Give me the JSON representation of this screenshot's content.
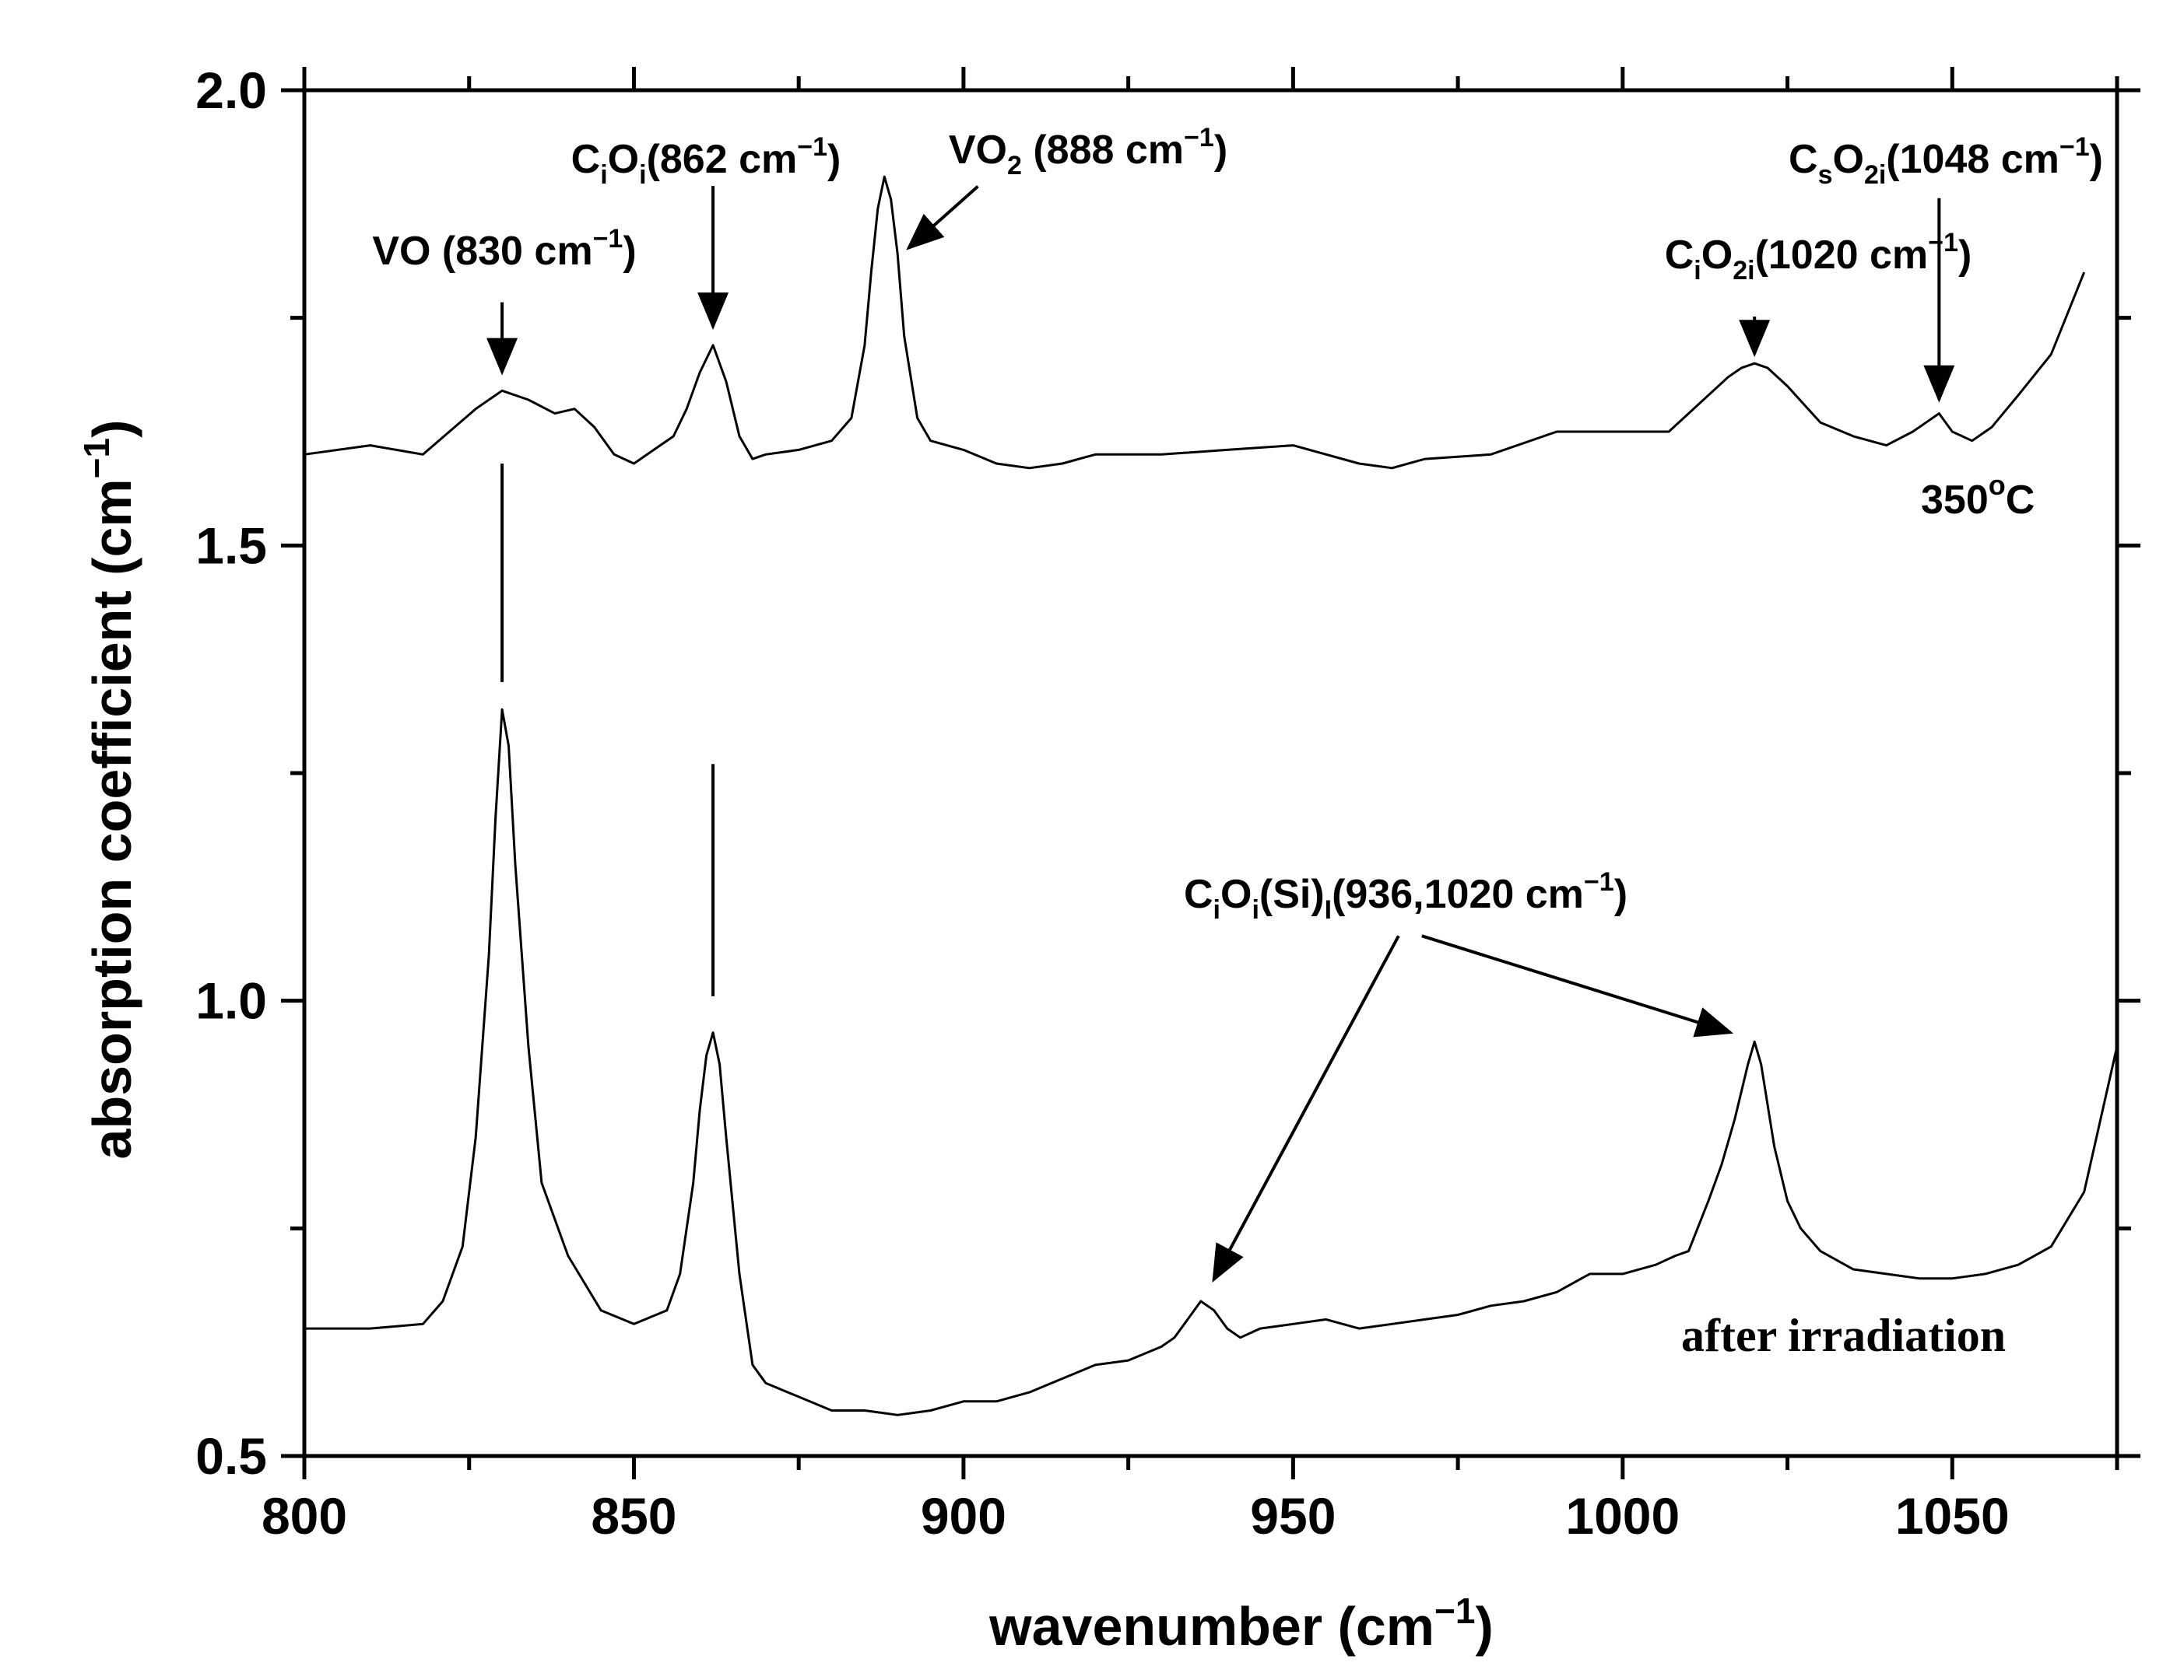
{
  "chart_data": {
    "type": "line",
    "xlabel": "wavenumber (cm",
    "xlabel_sup": "−1",
    "xlabel_end": ")",
    "ylabel": "absorption coefficient (cm",
    "ylabel_sup": "−1",
    "ylabel_end": ")",
    "xlim": [
      800,
      1075
    ],
    "ylim": [
      0.5,
      2.0
    ],
    "x_ticks": [
      800,
      850,
      900,
      950,
      1000,
      1050
    ],
    "x_tick_labels": [
      "800",
      "850",
      "900",
      "950",
      "1000",
      "1050"
    ],
    "y_ticks": [
      0.5,
      1.0,
      1.5,
      2.0
    ],
    "y_tick_labels": [
      "0.5",
      "1.0",
      "1.5",
      "2.0"
    ],
    "colors": {
      "line": "#000000",
      "background": "#ffffff"
    },
    "series": [
      {
        "name": "350°C",
        "x": [
          800,
          810,
          818,
          822,
          826,
          830,
          834,
          838,
          841,
          844,
          847,
          850,
          853,
          856,
          858,
          860,
          862,
          864,
          866,
          868,
          870,
          875,
          880,
          883,
          885,
          886,
          887,
          888,
          889,
          890,
          891,
          893,
          895,
          900,
          905,
          910,
          915,
          920,
          930,
          940,
          950,
          960,
          965,
          970,
          980,
          990,
          1000,
          1007,
          1010,
          1013,
          1016,
          1018,
          1020,
          1022,
          1025,
          1030,
          1035,
          1040,
          1044,
          1046,
          1048,
          1050,
          1053,
          1056,
          1060,
          1065,
          1070
        ],
        "y": [
          1.6,
          1.61,
          1.6,
          1.625,
          1.65,
          1.67,
          1.66,
          1.645,
          1.65,
          1.63,
          1.6,
          1.59,
          1.605,
          1.62,
          1.65,
          1.69,
          1.72,
          1.68,
          1.62,
          1.595,
          1.6,
          1.605,
          1.615,
          1.64,
          1.72,
          1.8,
          1.87,
          1.905,
          1.88,
          1.82,
          1.73,
          1.64,
          1.615,
          1.605,
          1.59,
          1.585,
          1.59,
          1.6,
          1.6,
          1.605,
          1.61,
          1.59,
          1.585,
          1.595,
          1.6,
          1.625,
          1.625,
          1.625,
          1.645,
          1.665,
          1.685,
          1.695,
          1.7,
          1.695,
          1.675,
          1.635,
          1.62,
          1.61,
          1.625,
          1.635,
          1.645,
          1.625,
          1.615,
          1.63,
          1.665,
          1.71,
          1.8
        ]
      },
      {
        "name": "after irradiation",
        "x": [
          800,
          810,
          818,
          821,
          824,
          826,
          828,
          829,
          830,
          831,
          832,
          834,
          836,
          840,
          845,
          850,
          855,
          857,
          859,
          860,
          861,
          862,
          863,
          864,
          866,
          868,
          870,
          875,
          880,
          885,
          890,
          895,
          900,
          905,
          910,
          915,
          920,
          925,
          930,
          932,
          934,
          936,
          938,
          940,
          942,
          945,
          950,
          955,
          960,
          965,
          970,
          975,
          980,
          985,
          990,
          995,
          1000,
          1005,
          1008,
          1010,
          1013,
          1015,
          1017,
          1019,
          1020,
          1021,
          1023,
          1025,
          1027,
          1030,
          1035,
          1040,
          1045,
          1050,
          1055,
          1060,
          1065,
          1070,
          1075
        ],
        "y": [
          0.64,
          0.64,
          0.645,
          0.67,
          0.73,
          0.85,
          1.05,
          1.2,
          1.32,
          1.28,
          1.15,
          0.95,
          0.8,
          0.72,
          0.66,
          0.645,
          0.66,
          0.7,
          0.8,
          0.88,
          0.94,
          0.965,
          0.93,
          0.85,
          0.7,
          0.6,
          0.58,
          0.565,
          0.55,
          0.55,
          0.545,
          0.55,
          0.56,
          0.56,
          0.57,
          0.585,
          0.6,
          0.605,
          0.62,
          0.63,
          0.65,
          0.67,
          0.66,
          0.64,
          0.63,
          0.64,
          0.645,
          0.65,
          0.64,
          0.645,
          0.65,
          0.655,
          0.665,
          0.67,
          0.68,
          0.7,
          0.7,
          0.71,
          0.72,
          0.725,
          0.78,
          0.82,
          0.87,
          0.93,
          0.955,
          0.93,
          0.84,
          0.78,
          0.75,
          0.725,
          0.705,
          0.7,
          0.695,
          0.695,
          0.7,
          0.71,
          0.73,
          0.79,
          0.95
        ]
      }
    ],
    "annotations": [
      {
        "id": "vo",
        "text": "VO (830 cm",
        "sup": "−1",
        "end": ")",
        "x": 830,
        "y": 1.75,
        "arrow_to": [
          830,
          1.68
        ]
      },
      {
        "id": "cioi",
        "text": "C",
        "sub1": "i",
        "mid": "O",
        "sub2": "i",
        "end": "(862 cm",
        "sup": "−1",
        "end2": ")",
        "x": 862,
        "y": 1.9,
        "arrow_to": [
          862,
          1.73
        ]
      },
      {
        "id": "vo2",
        "text": "VO",
        "sub1": "2",
        "end": " (888 cm",
        "sup": "−1",
        "end2": ")",
        "x": 901,
        "y": 1.92,
        "arrow_to": [
          890,
          1.83
        ]
      },
      {
        "id": "cio2i",
        "text": "C",
        "sub1": "i",
        "mid": "O",
        "sub2": "2i",
        "end": "(1020 cm",
        "sup": "−1",
        "end2": ")",
        "x": 1020,
        "y": 1.76,
        "arrow_to": [
          1020,
          1.7
        ]
      },
      {
        "id": "cso2i",
        "text": "C",
        "sub1": "s",
        "mid": "O",
        "sub2": "2i",
        "end": "(1048 cm",
        "sup": "−1",
        "end2": ")",
        "x": 1048,
        "y": 1.89,
        "arrow_to": [
          1048,
          1.65
        ]
      },
      {
        "id": "cioisi",
        "text": "C",
        "sub1": "i",
        "mid": "O",
        "sub2": "i",
        "end": "(Si)",
        "sub3": "I",
        "end2": "(936,1020 cm",
        "sup": "−1",
        "end3": ")",
        "x": 966,
        "y": 1.09,
        "arrows_to": [
          [
            937,
            0.685
          ],
          [
            1018,
            0.96
          ]
        ]
      },
      {
        "id": "temp",
        "text": "350",
        "sup": "o",
        "end": "C"
      },
      {
        "id": "irr",
        "text": "after irradiation"
      }
    ],
    "guides": [
      {
        "x": 830,
        "y_from": 1.35,
        "y_to": 1.59
      },
      {
        "x": 862,
        "y_from": 1.005,
        "y_to": 1.26
      }
    ]
  }
}
